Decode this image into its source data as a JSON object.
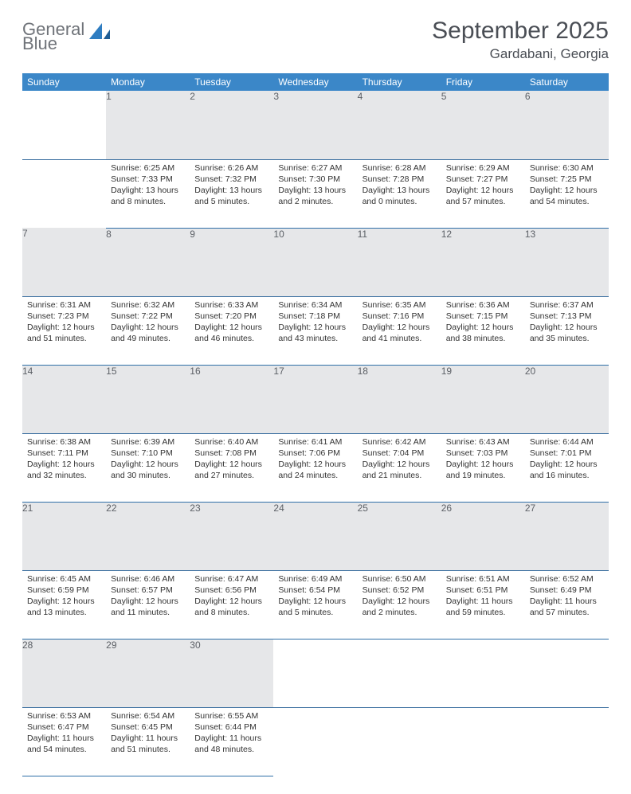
{
  "logo": {
    "word1": "General",
    "word2": "Blue"
  },
  "title": "September 2025",
  "location": "Gardabani, Georgia",
  "weekday_headers": [
    "Sunday",
    "Monday",
    "Tuesday",
    "Wednesday",
    "Thursday",
    "Friday",
    "Saturday"
  ],
  "colors": {
    "header_bg": "#3b87c8",
    "header_text": "#ffffff",
    "daynum_bg": "#e6e7e9",
    "daynum_text": "#5c6066",
    "rule": "#2f6fa8",
    "logo_gray": "#6f7379",
    "logo_blue": "#2f7dc1",
    "title_color": "#4a4e55"
  },
  "typography": {
    "title_fontsize": 30,
    "location_fontsize": 17,
    "header_fontsize": 12,
    "daynum_fontsize": 12,
    "body_fontsize": 10.5
  },
  "weeks": [
    {
      "nums": [
        "",
        "1",
        "2",
        "3",
        "4",
        "5",
        "6"
      ],
      "cells": [
        {
          "lines": []
        },
        {
          "lines": [
            "Sunrise: 6:25 AM",
            "Sunset: 7:33 PM",
            "Daylight: 13 hours and 8 minutes."
          ]
        },
        {
          "lines": [
            "Sunrise: 6:26 AM",
            "Sunset: 7:32 PM",
            "Daylight: 13 hours and 5 minutes."
          ]
        },
        {
          "lines": [
            "Sunrise: 6:27 AM",
            "Sunset: 7:30 PM",
            "Daylight: 13 hours and 2 minutes."
          ]
        },
        {
          "lines": [
            "Sunrise: 6:28 AM",
            "Sunset: 7:28 PM",
            "Daylight: 13 hours and 0 minutes."
          ]
        },
        {
          "lines": [
            "Sunrise: 6:29 AM",
            "Sunset: 7:27 PM",
            "Daylight: 12 hours and 57 minutes."
          ]
        },
        {
          "lines": [
            "Sunrise: 6:30 AM",
            "Sunset: 7:25 PM",
            "Daylight: 12 hours and 54 minutes."
          ]
        }
      ]
    },
    {
      "nums": [
        "7",
        "8",
        "9",
        "10",
        "11",
        "12",
        "13"
      ],
      "cells": [
        {
          "lines": [
            "Sunrise: 6:31 AM",
            "Sunset: 7:23 PM",
            "Daylight: 12 hours and 51 minutes."
          ]
        },
        {
          "lines": [
            "Sunrise: 6:32 AM",
            "Sunset: 7:22 PM",
            "Daylight: 12 hours and 49 minutes."
          ]
        },
        {
          "lines": [
            "Sunrise: 6:33 AM",
            "Sunset: 7:20 PM",
            "Daylight: 12 hours and 46 minutes."
          ]
        },
        {
          "lines": [
            "Sunrise: 6:34 AM",
            "Sunset: 7:18 PM",
            "Daylight: 12 hours and 43 minutes."
          ]
        },
        {
          "lines": [
            "Sunrise: 6:35 AM",
            "Sunset: 7:16 PM",
            "Daylight: 12 hours and 41 minutes."
          ]
        },
        {
          "lines": [
            "Sunrise: 6:36 AM",
            "Sunset: 7:15 PM",
            "Daylight: 12 hours and 38 minutes."
          ]
        },
        {
          "lines": [
            "Sunrise: 6:37 AM",
            "Sunset: 7:13 PM",
            "Daylight: 12 hours and 35 minutes."
          ]
        }
      ]
    },
    {
      "nums": [
        "14",
        "15",
        "16",
        "17",
        "18",
        "19",
        "20"
      ],
      "cells": [
        {
          "lines": [
            "Sunrise: 6:38 AM",
            "Sunset: 7:11 PM",
            "Daylight: 12 hours and 32 minutes."
          ]
        },
        {
          "lines": [
            "Sunrise: 6:39 AM",
            "Sunset: 7:10 PM",
            "Daylight: 12 hours and 30 minutes."
          ]
        },
        {
          "lines": [
            "Sunrise: 6:40 AM",
            "Sunset: 7:08 PM",
            "Daylight: 12 hours and 27 minutes."
          ]
        },
        {
          "lines": [
            "Sunrise: 6:41 AM",
            "Sunset: 7:06 PM",
            "Daylight: 12 hours and 24 minutes."
          ]
        },
        {
          "lines": [
            "Sunrise: 6:42 AM",
            "Sunset: 7:04 PM",
            "Daylight: 12 hours and 21 minutes."
          ]
        },
        {
          "lines": [
            "Sunrise: 6:43 AM",
            "Sunset: 7:03 PM",
            "Daylight: 12 hours and 19 minutes."
          ]
        },
        {
          "lines": [
            "Sunrise: 6:44 AM",
            "Sunset: 7:01 PM",
            "Daylight: 12 hours and 16 minutes."
          ]
        }
      ]
    },
    {
      "nums": [
        "21",
        "22",
        "23",
        "24",
        "25",
        "26",
        "27"
      ],
      "cells": [
        {
          "lines": [
            "Sunrise: 6:45 AM",
            "Sunset: 6:59 PM",
            "Daylight: 12 hours and 13 minutes."
          ]
        },
        {
          "lines": [
            "Sunrise: 6:46 AM",
            "Sunset: 6:57 PM",
            "Daylight: 12 hours and 11 minutes."
          ]
        },
        {
          "lines": [
            "Sunrise: 6:47 AM",
            "Sunset: 6:56 PM",
            "Daylight: 12 hours and 8 minutes."
          ]
        },
        {
          "lines": [
            "Sunrise: 6:49 AM",
            "Sunset: 6:54 PM",
            "Daylight: 12 hours and 5 minutes."
          ]
        },
        {
          "lines": [
            "Sunrise: 6:50 AM",
            "Sunset: 6:52 PM",
            "Daylight: 12 hours and 2 minutes."
          ]
        },
        {
          "lines": [
            "Sunrise: 6:51 AM",
            "Sunset: 6:51 PM",
            "Daylight: 11 hours and 59 minutes."
          ]
        },
        {
          "lines": [
            "Sunrise: 6:52 AM",
            "Sunset: 6:49 PM",
            "Daylight: 11 hours and 57 minutes."
          ]
        }
      ]
    },
    {
      "nums": [
        "28",
        "29",
        "30",
        "",
        "",
        "",
        ""
      ],
      "cells": [
        {
          "lines": [
            "Sunrise: 6:53 AM",
            "Sunset: 6:47 PM",
            "Daylight: 11 hours and 54 minutes."
          ]
        },
        {
          "lines": [
            "Sunrise: 6:54 AM",
            "Sunset: 6:45 PM",
            "Daylight: 11 hours and 51 minutes."
          ]
        },
        {
          "lines": [
            "Sunrise: 6:55 AM",
            "Sunset: 6:44 PM",
            "Daylight: 11 hours and 48 minutes."
          ]
        },
        {
          "lines": []
        },
        {
          "lines": []
        },
        {
          "lines": []
        },
        {
          "lines": []
        }
      ]
    }
  ]
}
